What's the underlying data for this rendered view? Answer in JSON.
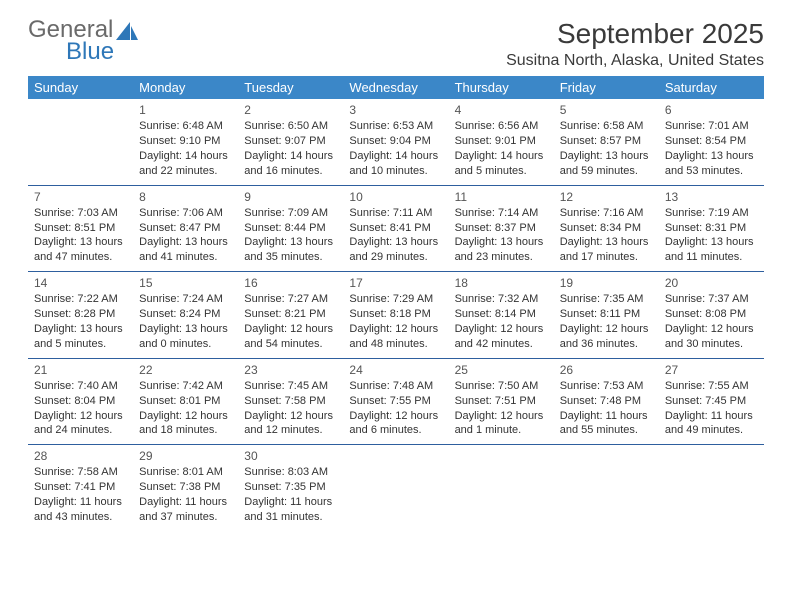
{
  "brand": {
    "line1": "General",
    "line2": "Blue",
    "color_gray": "#6a6a6a",
    "color_blue": "#2e77b8"
  },
  "title": "September 2025",
  "location": "Susitna North, Alaska, United States",
  "header_bg": "#3b87c8",
  "row_border": "#2e5f9e",
  "days": [
    "Sunday",
    "Monday",
    "Tuesday",
    "Wednesday",
    "Thursday",
    "Friday",
    "Saturday"
  ],
  "weeks": [
    [
      null,
      {
        "n": "1",
        "sr": "6:48 AM",
        "ss": "9:10 PM",
        "dl": "14 hours and 22 minutes."
      },
      {
        "n": "2",
        "sr": "6:50 AM",
        "ss": "9:07 PM",
        "dl": "14 hours and 16 minutes."
      },
      {
        "n": "3",
        "sr": "6:53 AM",
        "ss": "9:04 PM",
        "dl": "14 hours and 10 minutes."
      },
      {
        "n": "4",
        "sr": "6:56 AM",
        "ss": "9:01 PM",
        "dl": "14 hours and 5 minutes."
      },
      {
        "n": "5",
        "sr": "6:58 AM",
        "ss": "8:57 PM",
        "dl": "13 hours and 59 minutes."
      },
      {
        "n": "6",
        "sr": "7:01 AM",
        "ss": "8:54 PM",
        "dl": "13 hours and 53 minutes."
      }
    ],
    [
      {
        "n": "7",
        "sr": "7:03 AM",
        "ss": "8:51 PM",
        "dl": "13 hours and 47 minutes."
      },
      {
        "n": "8",
        "sr": "7:06 AM",
        "ss": "8:47 PM",
        "dl": "13 hours and 41 minutes."
      },
      {
        "n": "9",
        "sr": "7:09 AM",
        "ss": "8:44 PM",
        "dl": "13 hours and 35 minutes."
      },
      {
        "n": "10",
        "sr": "7:11 AM",
        "ss": "8:41 PM",
        "dl": "13 hours and 29 minutes."
      },
      {
        "n": "11",
        "sr": "7:14 AM",
        "ss": "8:37 PM",
        "dl": "13 hours and 23 minutes."
      },
      {
        "n": "12",
        "sr": "7:16 AM",
        "ss": "8:34 PM",
        "dl": "13 hours and 17 minutes."
      },
      {
        "n": "13",
        "sr": "7:19 AM",
        "ss": "8:31 PM",
        "dl": "13 hours and 11 minutes."
      }
    ],
    [
      {
        "n": "14",
        "sr": "7:22 AM",
        "ss": "8:28 PM",
        "dl": "13 hours and 5 minutes."
      },
      {
        "n": "15",
        "sr": "7:24 AM",
        "ss": "8:24 PM",
        "dl": "13 hours and 0 minutes."
      },
      {
        "n": "16",
        "sr": "7:27 AM",
        "ss": "8:21 PM",
        "dl": "12 hours and 54 minutes."
      },
      {
        "n": "17",
        "sr": "7:29 AM",
        "ss": "8:18 PM",
        "dl": "12 hours and 48 minutes."
      },
      {
        "n": "18",
        "sr": "7:32 AM",
        "ss": "8:14 PM",
        "dl": "12 hours and 42 minutes."
      },
      {
        "n": "19",
        "sr": "7:35 AM",
        "ss": "8:11 PM",
        "dl": "12 hours and 36 minutes."
      },
      {
        "n": "20",
        "sr": "7:37 AM",
        "ss": "8:08 PM",
        "dl": "12 hours and 30 minutes."
      }
    ],
    [
      {
        "n": "21",
        "sr": "7:40 AM",
        "ss": "8:04 PM",
        "dl": "12 hours and 24 minutes."
      },
      {
        "n": "22",
        "sr": "7:42 AM",
        "ss": "8:01 PM",
        "dl": "12 hours and 18 minutes."
      },
      {
        "n": "23",
        "sr": "7:45 AM",
        "ss": "7:58 PM",
        "dl": "12 hours and 12 minutes."
      },
      {
        "n": "24",
        "sr": "7:48 AM",
        "ss": "7:55 PM",
        "dl": "12 hours and 6 minutes."
      },
      {
        "n": "25",
        "sr": "7:50 AM",
        "ss": "7:51 PM",
        "dl": "12 hours and 1 minute."
      },
      {
        "n": "26",
        "sr": "7:53 AM",
        "ss": "7:48 PM",
        "dl": "11 hours and 55 minutes."
      },
      {
        "n": "27",
        "sr": "7:55 AM",
        "ss": "7:45 PM",
        "dl": "11 hours and 49 minutes."
      }
    ],
    [
      {
        "n": "28",
        "sr": "7:58 AM",
        "ss": "7:41 PM",
        "dl": "11 hours and 43 minutes."
      },
      {
        "n": "29",
        "sr": "8:01 AM",
        "ss": "7:38 PM",
        "dl": "11 hours and 37 minutes."
      },
      {
        "n": "30",
        "sr": "8:03 AM",
        "ss": "7:35 PM",
        "dl": "11 hours and 31 minutes."
      },
      null,
      null,
      null,
      null
    ]
  ],
  "labels": {
    "sunrise": "Sunrise:",
    "sunset": "Sunset:",
    "daylight": "Daylight:"
  }
}
